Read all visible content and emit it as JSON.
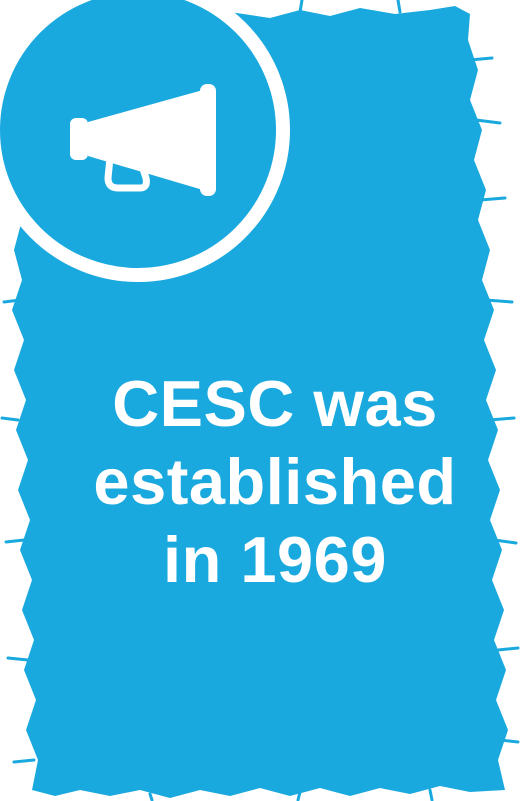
{
  "colors": {
    "panel": "#19a9de",
    "text": "#ffffff",
    "badge_ring": "#ffffff"
  },
  "icon": "megaphone-icon",
  "headline": {
    "line1": "CESC was",
    "line2": "established",
    "line3": "in 1969"
  }
}
